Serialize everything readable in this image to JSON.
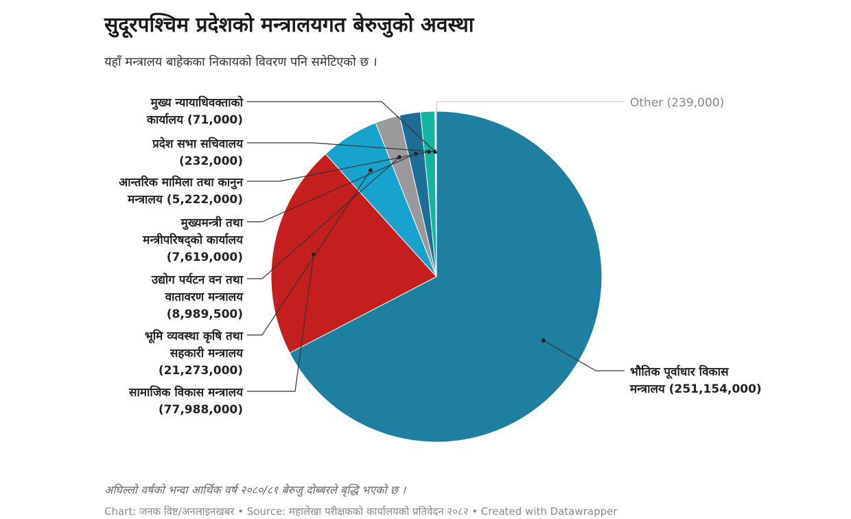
{
  "header": {
    "title": "सुदूरपश्चिम प्रदेशको मन्त्रालयगत बेरुजुको अवस्था",
    "subtitle": "यहाँ मन्त्रालय बाहेकका निकायको विवरण पनि समेटिएको छ ।"
  },
  "chart_data": {
    "type": "pie",
    "slices": [
      {
        "label": [
          "भौतिक पूर्वाधार विकास",
          "मन्त्रालय (251,154,000)"
        ],
        "value": 251154000,
        "color": "#1f7fa1"
      },
      {
        "label": [
          "सामाजिक विकास मन्त्रालय",
          "(77,988,000)"
        ],
        "value": 77988000,
        "color": "#c41e1e"
      },
      {
        "label": [
          "भूमि व्यवस्था कृषि तथा",
          "सहकारी मन्त्रालय",
          "(21,273,000)"
        ],
        "value": 21273000,
        "color": "#18a3cf"
      },
      {
        "label": [
          "उद्योग पर्यटन वन तथा",
          "वातावरण मन्त्रालय",
          "(8,989,500)"
        ],
        "value": 8989500,
        "color": "#9a9a9a"
      },
      {
        "label": [
          "मुख्यमन्त्री तथा",
          "मन्त्रीपरिषद्को कार्यालय",
          "(7,619,000)"
        ],
        "value": 7619000,
        "color": "#1d6e96"
      },
      {
        "label": [
          "आन्तरिक मामिला तथा कानुन",
          "मन्त्रालय (5,222,000)"
        ],
        "value": 5222000,
        "color": "#14b5a0"
      },
      {
        "label": [
          "प्रदेश सभा सचिवालय",
          "(232,000)"
        ],
        "value": 232000,
        "color": "#1d6e96"
      },
      {
        "label": [
          "मुख्य न्यायाधिवक्ताको",
          "कार्यालय (71,000)"
        ],
        "value": 71000,
        "color": "#8a8a8a"
      },
      {
        "label": [
          "Other (239,000)"
        ],
        "value": 239000,
        "color": "#cccccc"
      }
    ]
  },
  "footer": {
    "note": "अघिल्लो वर्षको भन्दा आर्थिक वर्ष २०८०/८१ बेरुजु दोब्बरले बृद्धि भएको छ ।",
    "source": "Chart: जनक विष्ट/अनलाइनखबर • Source: महालेखा परीक्षकको कार्यालयको प्रतिवेदन २०८२ • Created with Datawrapper"
  }
}
